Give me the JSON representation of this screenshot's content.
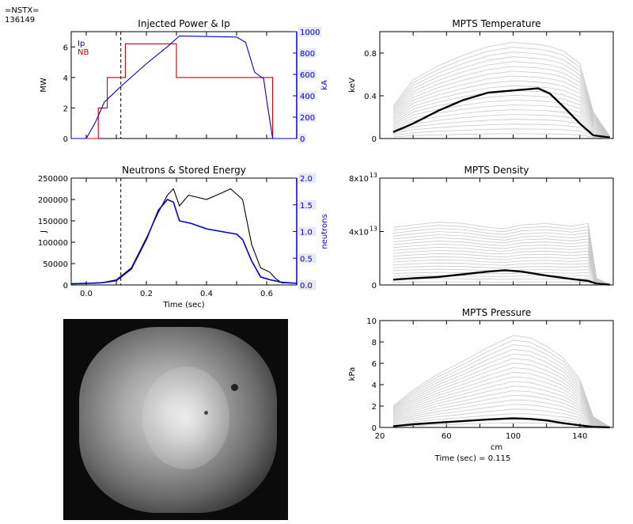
{
  "header": {
    "device": "=NSTX=",
    "shot": "136149"
  },
  "time_readout": "Time (sec) = 0.115",
  "camera": {
    "label": "fast camera frame"
  },
  "chart_data": [
    {
      "id": "power",
      "type": "line",
      "title": "Injected Power & Ip",
      "xlim": [
        -0.05,
        0.7
      ],
      "ylim": [
        0,
        7
      ],
      "y2lim": [
        0,
        1000
      ],
      "ylabel": "MW",
      "y2label": "kA",
      "yticks": [
        "0",
        "2",
        "4",
        "6"
      ],
      "yticks_v": [
        0,
        2,
        4,
        6
      ],
      "y2ticks": [
        "0",
        "200",
        "400",
        "600",
        "800",
        "1000"
      ],
      "y2ticks_v": [
        0,
        200,
        400,
        600,
        800,
        1000
      ],
      "xticks_v": [
        0,
        0.1,
        0.2,
        0.3,
        0.4,
        0.5,
        0.6
      ],
      "vline": 0.115,
      "legend": [
        {
          "name": "Ip",
          "color": "#0000cc"
        },
        {
          "name": "NB",
          "color": "#cc0000"
        }
      ],
      "series": [
        {
          "name": "NB",
          "axis": "left",
          "color": "#cc0000",
          "step": true,
          "ripple": 0.1,
          "x": [
            -0.05,
            0.01,
            0.04,
            0.07,
            0.08,
            0.1,
            0.13,
            0.3,
            0.55,
            0.62,
            0.7
          ],
          "y": [
            0,
            0,
            2.0,
            4.0,
            4.0,
            4.0,
            6.2,
            4.0,
            4.0,
            0,
            0
          ]
        },
        {
          "name": "Ip",
          "axis": "right",
          "color": "#0000cc",
          "x": [
            -0.05,
            0.0,
            0.03,
            0.06,
            0.09,
            0.12,
            0.2,
            0.27,
            0.31,
            0.5,
            0.53,
            0.56,
            0.59,
            0.6,
            0.62,
            0.7
          ],
          "y": [
            0,
            0,
            150,
            340,
            420,
            500,
            700,
            860,
            960,
            950,
            900,
            620,
            560,
            360,
            0,
            0
          ]
        }
      ]
    },
    {
      "id": "neutrons",
      "type": "line",
      "title": "Neutrons & Stored Energy",
      "xlim": [
        -0.05,
        0.7
      ],
      "ylim": [
        0,
        250000
      ],
      "y2lim": [
        0,
        2.0
      ],
      "ylabel": "J",
      "y2label": "neutrons",
      "xlabel": "Time (sec)",
      "xticks": [
        "0.0",
        "0.2",
        "0.4",
        "0.6"
      ],
      "xticks_v": [
        0,
        0.2,
        0.4,
        0.6
      ],
      "xminor_v": [
        0.1,
        0.3,
        0.5,
        0.7
      ],
      "yticks": [
        "0",
        "50000",
        "100000",
        "150000",
        "200000",
        "250000"
      ],
      "yticks_v": [
        0,
        50000,
        100000,
        150000,
        200000,
        250000
      ],
      "y2ticks": [
        "0.0",
        "0.5",
        "1.0",
        "1.5",
        "2.0"
      ],
      "y2ticks_v": [
        0,
        0.5,
        1.0,
        1.5,
        2.0
      ],
      "vline": 0.115,
      "series": [
        {
          "name": "stored energy",
          "axis": "left",
          "color": "#000000",
          "x": [
            -0.05,
            0.05,
            0.1,
            0.15,
            0.2,
            0.24,
            0.27,
            0.29,
            0.31,
            0.34,
            0.4,
            0.45,
            0.48,
            0.52,
            0.55,
            0.58,
            0.61,
            0.63,
            0.65,
            0.7
          ],
          "y": [
            3000,
            5000,
            12000,
            40000,
            110000,
            170000,
            210000,
            225000,
            185000,
            210000,
            200000,
            215000,
            225000,
            200000,
            95000,
            40000,
            30000,
            15000,
            5000,
            4000
          ]
        },
        {
          "name": "neutrons",
          "axis": "right",
          "color": "#0000cc",
          "width": 1.6,
          "x": [
            -0.05,
            0.05,
            0.1,
            0.15,
            0.2,
            0.24,
            0.27,
            0.29,
            0.31,
            0.35,
            0.4,
            0.45,
            0.5,
            0.52,
            0.55,
            0.58,
            0.61,
            0.65,
            0.7
          ],
          "y": [
            0.02,
            0.04,
            0.08,
            0.3,
            0.85,
            1.4,
            1.6,
            1.55,
            1.2,
            1.15,
            1.05,
            1.0,
            0.95,
            0.85,
            0.45,
            0.15,
            0.1,
            0.05,
            0.03
          ]
        }
      ]
    },
    {
      "id": "temperature",
      "type": "line",
      "title": "MPTS Temperature",
      "xlim": [
        20,
        160
      ],
      "ylim": [
        0,
        1.0
      ],
      "ylabel": "keV",
      "yticks": [
        "0",
        "0.4",
        "0.8"
      ],
      "yticks_v": [
        0,
        0.4,
        0.8
      ],
      "xticks_v": [
        20,
        40,
        60,
        80,
        100,
        120,
        140,
        160
      ],
      "profile": {
        "r": [
          28,
          40,
          55,
          70,
          85,
          100,
          115,
          122,
          130,
          140,
          148,
          158
        ],
        "current": [
          0.06,
          0.14,
          0.26,
          0.36,
          0.43,
          0.45,
          0.47,
          0.42,
          0.3,
          0.14,
          0.03,
          0.01
        ],
        "envelope": [
          0.3,
          0.55,
          0.68,
          0.78,
          0.86,
          0.9,
          0.88,
          0.86,
          0.82,
          0.7,
          0.25,
          0.02
        ],
        "scales": [
          0.05,
          0.1,
          0.15,
          0.2,
          0.25,
          0.3,
          0.35,
          0.4,
          0.45,
          0.5,
          0.55,
          0.6,
          0.65,
          0.7,
          0.75,
          0.8,
          0.85,
          0.9,
          0.95,
          1.0
        ]
      }
    },
    {
      "id": "density",
      "type": "line",
      "title": "MPTS Density",
      "xlim": [
        20,
        160
      ],
      "ylim": [
        0,
        80000000000000.0
      ],
      "ylabel": "",
      "yticks": [
        "0",
        "4x10",
        "8x10"
      ],
      "ytick_exp": [
        "",
        "13",
        "13"
      ],
      "yticks_v": [
        0,
        40000000000000.0,
        80000000000000.0
      ],
      "xticks_v": [
        20,
        40,
        60,
        80,
        100,
        120,
        140,
        160
      ],
      "profile": {
        "r": [
          28,
          40,
          55,
          70,
          85,
          95,
          105,
          120,
          135,
          145,
          150,
          158
        ],
        "current": [
          4000000000000.0,
          5000000000000.0,
          6000000000000.0,
          8000000000000.0,
          10000000000000.0,
          11000000000000.0,
          10000000000000.0,
          7000000000000.0,
          4500000000000.0,
          3000000000000.0,
          1000000000000.0,
          200000000000.0
        ],
        "envelope": [
          43000000000000.0,
          45000000000000.0,
          47000000000000.0,
          46000000000000.0,
          43000000000000.0,
          42000000000000.0,
          45000000000000.0,
          46000000000000.0,
          44000000000000.0,
          46000000000000.0,
          5000000000000.0,
          500000000000.0
        ],
        "scales": [
          0.05,
          0.1,
          0.15,
          0.2,
          0.25,
          0.3,
          0.35,
          0.4,
          0.45,
          0.5,
          0.55,
          0.6,
          0.65,
          0.7,
          0.75,
          0.8,
          0.85,
          0.9,
          0.95,
          1.0
        ]
      }
    },
    {
      "id": "pressure",
      "type": "line",
      "title": "MPTS Pressure",
      "xlim": [
        20,
        160
      ],
      "ylim": [
        0,
        10
      ],
      "ylabel": "kPa",
      "xlabel": "cm",
      "yticks": [
        "0",
        "2",
        "4",
        "6",
        "8",
        "10"
      ],
      "yticks_v": [
        0,
        2,
        4,
        6,
        8,
        10
      ],
      "xticks": [
        "20",
        "60",
        "100",
        "140"
      ],
      "xticks_v": [
        20,
        60,
        100,
        140
      ],
      "xminor_v": [
        40,
        80,
        120,
        160
      ],
      "profile": {
        "r": [
          28,
          40,
          55,
          70,
          85,
          100,
          110,
          120,
          130,
          140,
          148,
          158
        ],
        "current": [
          0.1,
          0.3,
          0.45,
          0.6,
          0.75,
          0.85,
          0.8,
          0.65,
          0.4,
          0.2,
          0.05,
          0.01
        ],
        "envelope": [
          2.0,
          3.5,
          5.0,
          6.2,
          7.5,
          8.6,
          8.4,
          7.6,
          6.5,
          4.5,
          1.0,
          0.05
        ],
        "scales": [
          0.05,
          0.1,
          0.15,
          0.2,
          0.25,
          0.3,
          0.35,
          0.4,
          0.45,
          0.5,
          0.55,
          0.6,
          0.65,
          0.7,
          0.75,
          0.8,
          0.85,
          0.9,
          0.95,
          1.0
        ]
      }
    }
  ]
}
